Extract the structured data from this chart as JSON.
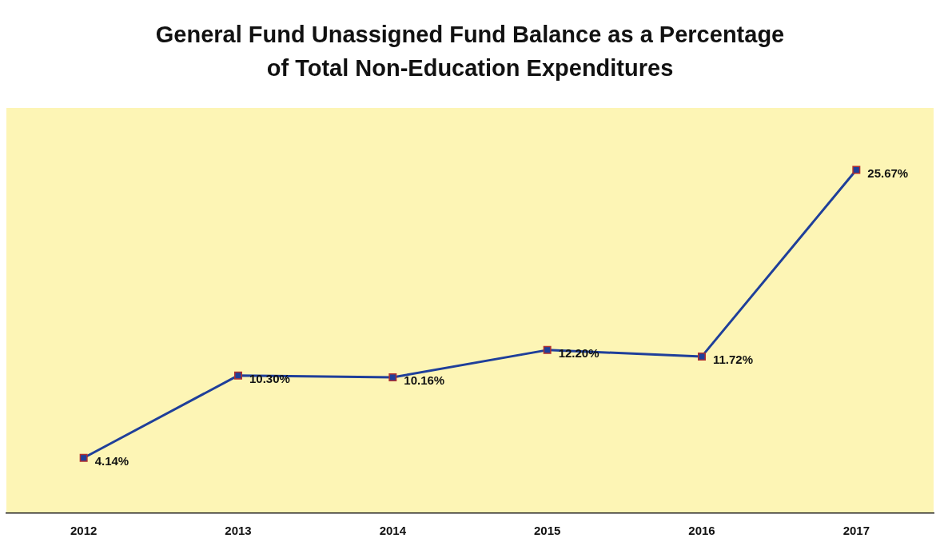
{
  "chart_data": {
    "type": "line",
    "title": "General Fund Unassigned Fund Balance as a Percentage of Total Non-Education Expenditures",
    "categories": [
      "2012",
      "2013",
      "2014",
      "2015",
      "2016",
      "2017"
    ],
    "series": [
      {
        "color": "#1f3f9a",
        "values": [
          4.14,
          10.3,
          10.16,
          12.2,
          11.72,
          25.67
        ],
        "value_labels": [
          "4.14%",
          "10.30%",
          "10.16%",
          "12.20%",
          "11.72%",
          "25.67%"
        ]
      }
    ],
    "marker": "square",
    "grid": false,
    "legend": false
  }
}
